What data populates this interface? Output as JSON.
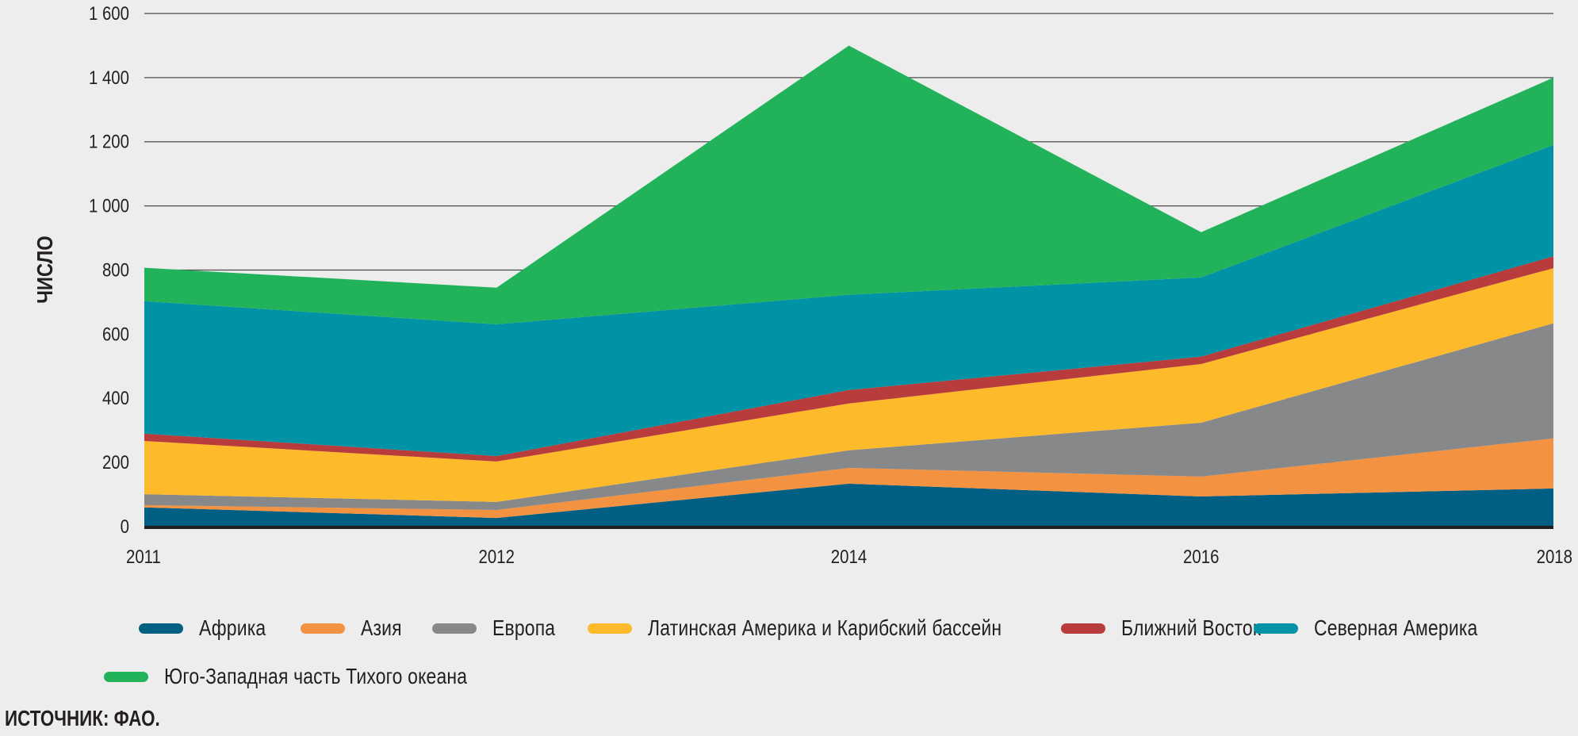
{
  "chart_data": {
    "type": "area",
    "stacked": true,
    "title": "",
    "xlabel": "",
    "ylabel": "ЧИСЛО",
    "categories": [
      "2011",
      "2012",
      "2014",
      "2016",
      "2018"
    ],
    "ylim": [
      0,
      1600
    ],
    "yticks": [
      0,
      200,
      400,
      600,
      800,
      1000,
      1200,
      1400,
      1600
    ],
    "ytick_labels": [
      "0",
      "200",
      "400",
      "600",
      "800",
      "1 000",
      "1 200",
      "1 400",
      "1 600"
    ],
    "grid": true,
    "legend_position": "bottom",
    "series": [
      {
        "name": "Африка",
        "color": "#005f83",
        "values": [
          60,
          27,
          134,
          94,
          119
        ]
      },
      {
        "name": "Азия",
        "color": "#f39241",
        "values": [
          7,
          25,
          49,
          62,
          156
        ]
      },
      {
        "name": "Европа",
        "color": "#87888a",
        "values": [
          34,
          25,
          55,
          168,
          359
        ]
      },
      {
        "name": "Латинская Америка и Карибский бассейн",
        "color": "#fdbb2c",
        "values": [
          166,
          126,
          146,
          183,
          172
        ]
      },
      {
        "name": "Ближний Восток",
        "color": "#b93c3c",
        "values": [
          23,
          17,
          42,
          23,
          37
        ]
      },
      {
        "name": "Северная Америка",
        "color": "#0092a5",
        "values": [
          413,
          411,
          297,
          247,
          347
        ]
      },
      {
        "name": "Юго-Западная часть Тихого океана",
        "color": "#22b35a",
        "values": [
          104,
          114,
          777,
          141,
          210
        ]
      }
    ]
  },
  "source": "ИСТОЧНИК: ФАО."
}
